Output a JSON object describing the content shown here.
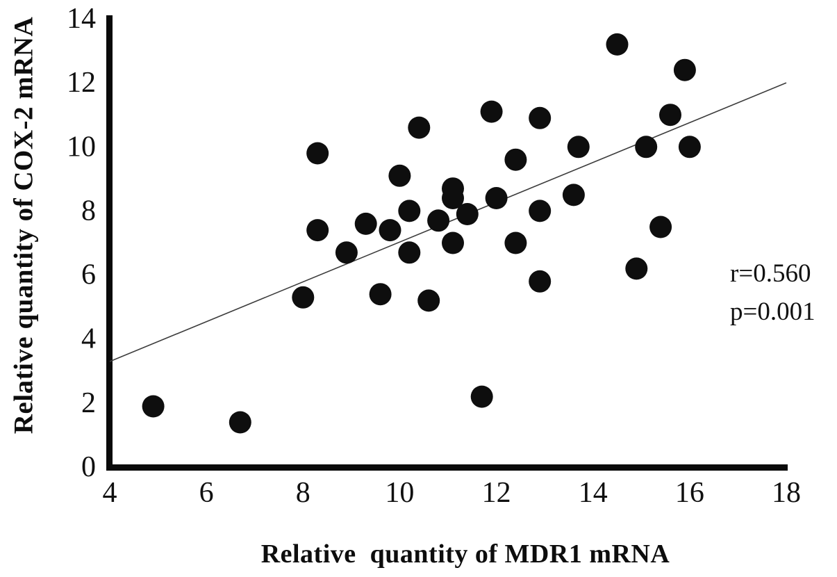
{
  "figure": {
    "background": "#ffffff"
  },
  "chart_data": {
    "type": "scatter",
    "title": "",
    "xlabel": "Relative  quantity of MDR1 mRNA",
    "ylabel": "Relative quantity of COX-2 mRNA",
    "xlim": [
      4,
      18
    ],
    "ylim": [
      0,
      14
    ],
    "x_ticks": [
      4,
      6,
      8,
      10,
      12,
      14,
      16,
      18
    ],
    "y_ticks": [
      0,
      2,
      4,
      6,
      8,
      10,
      12,
      14
    ],
    "grid": false,
    "axis_color": "#0a0a0a",
    "tick_label_color": "#101010",
    "marker": {
      "shape": "circle",
      "color": "#0e0e0e",
      "radius_px": 16
    },
    "points": [
      [
        4.9,
        1.9
      ],
      [
        6.7,
        1.4
      ],
      [
        8.0,
        5.3
      ],
      [
        8.3,
        7.4
      ],
      [
        8.3,
        9.8
      ],
      [
        8.9,
        6.7
      ],
      [
        9.3,
        7.6
      ],
      [
        9.6,
        5.4
      ],
      [
        9.8,
        7.4
      ],
      [
        10.0,
        9.1
      ],
      [
        10.2,
        6.7
      ],
      [
        10.2,
        8.0
      ],
      [
        10.4,
        10.6
      ],
      [
        10.6,
        5.2
      ],
      [
        10.8,
        7.7
      ],
      [
        11.1,
        7.0
      ],
      [
        11.1,
        8.4
      ],
      [
        11.1,
        8.7
      ],
      [
        11.4,
        7.9
      ],
      [
        11.7,
        2.2
      ],
      [
        11.9,
        11.1
      ],
      [
        12.0,
        8.4
      ],
      [
        12.4,
        7.0
      ],
      [
        12.4,
        9.6
      ],
      [
        12.9,
        5.8
      ],
      [
        12.9,
        8.0
      ],
      [
        12.9,
        10.9
      ],
      [
        13.6,
        8.5
      ],
      [
        13.7,
        10.0
      ],
      [
        14.5,
        13.2
      ],
      [
        14.9,
        6.2
      ],
      [
        15.1,
        10.0
      ],
      [
        15.4,
        7.5
      ],
      [
        15.6,
        11.0
      ],
      [
        15.9,
        12.4
      ],
      [
        16.0,
        10.0
      ]
    ],
    "trend_line": {
      "x1": 4,
      "y1": 3.3,
      "x2": 18,
      "y2": 12.0,
      "color": "#3c3c3c"
    },
    "annotation": {
      "lines": [
        "r=0.560",
        "p=0.001"
      ]
    }
  }
}
